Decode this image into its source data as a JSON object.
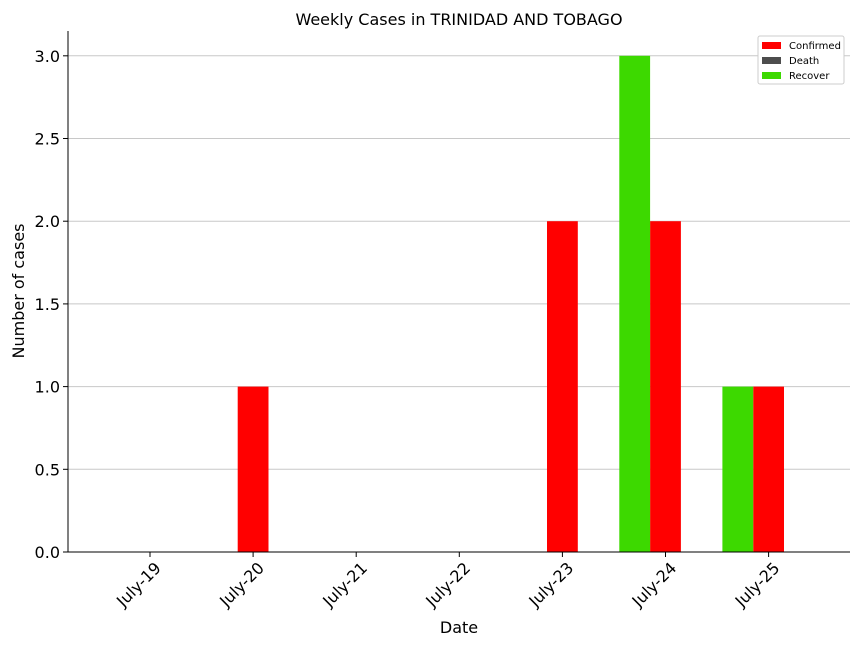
{
  "chart_data": {
    "type": "bar",
    "title": "Weekly Cases in TRINIDAD AND TOBAGO",
    "xlabel": "Date",
    "ylabel": "Number of cases",
    "categories": [
      "July-19",
      "July-20",
      "July-21",
      "July-22",
      "July-23",
      "July-24",
      "July-25"
    ],
    "ylim": [
      0,
      3.15
    ],
    "yticks": [
      "0.0",
      "0.5",
      "1.0",
      "1.5",
      "2.0",
      "2.5",
      "3.0"
    ],
    "grid": "horizontal",
    "legend_position": "top-right",
    "series": [
      {
        "name": "Confirmed",
        "color": "#ff0000",
        "values": [
          0,
          1,
          0,
          0,
          2,
          2,
          1
        ]
      },
      {
        "name": "Death",
        "color": "#4d4d4d",
        "values": [
          0,
          0,
          0,
          0,
          0,
          0,
          0
        ]
      },
      {
        "name": "Recover",
        "color": "#3dd900",
        "values": [
          0,
          0,
          0,
          0,
          0,
          3,
          1
        ]
      }
    ]
  }
}
